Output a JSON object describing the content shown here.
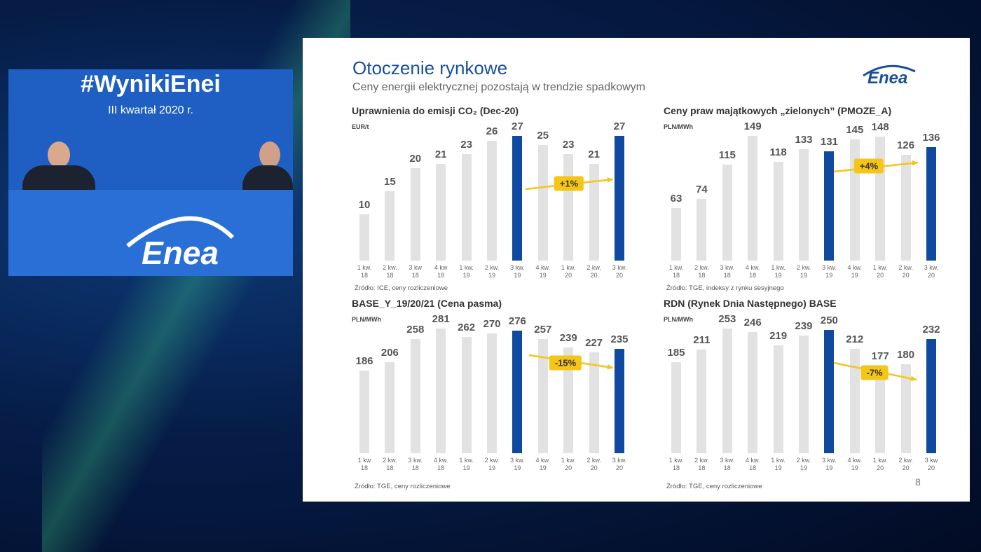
{
  "stream": {
    "hashtag": "#WynikiEnei",
    "period": "III kwartał 2020 r.",
    "logo": "Enea"
  },
  "slide": {
    "title": "Otoczenie rynkowe",
    "subtitle": "Ceny energii elektrycznej pozostają w trendzie spadkowym",
    "logo": "Enea",
    "page": "8"
  },
  "chart_data": [
    {
      "type": "bar",
      "title": "Uprawnienia do emisji CO₂ (Dec-20)",
      "unit": "EUR/t",
      "source": "Źródło: ICE, ceny rozliczeniowe",
      "categories": [
        "1 kw.\n18",
        "2 kw.\n18",
        "3 kw\n18",
        "4 kw\n18",
        "1 kw.\n19",
        "2 kw.\n19",
        "3 kw.\n19",
        "4 kw.\n19",
        "1 kw.\n20",
        "2 kw.\n20",
        "3 kw.\n20"
      ],
      "values": [
        10,
        15,
        20,
        21,
        23,
        26,
        27,
        25,
        23,
        21,
        27
      ],
      "color": "#e2e2e2",
      "highlight_color": "#0f4aa0",
      "highlight": [
        6,
        10
      ],
      "annotation": "+1%"
    },
    {
      "type": "bar",
      "title": "Ceny praw majątkowych „zielonych” (PMOZE_A)",
      "unit": "PLN/MWh",
      "source": "Źródło: TGE, indeksy z rynku sesyjnego",
      "categories": [
        "1 kw.\n18",
        "2 kw.\n18",
        "3 kw.\n18",
        "4 kw.\n18",
        "1 kw.\n19",
        "2 kw.\n19",
        "3 kw.\n19",
        "4 kw.\n19",
        "1 kw.\n20",
        "2 kw.\n20",
        "3 kw.\n20"
      ],
      "values": [
        63,
        74,
        115,
        149,
        118,
        133,
        131,
        145,
        148,
        126,
        136
      ],
      "color": "#e2e2e2",
      "highlight_color": "#0f4aa0",
      "highlight": [
        6,
        10
      ],
      "annotation": "+4%"
    },
    {
      "type": "bar",
      "title": "BASE_Y_19/20/21 (Cena pasma)",
      "unit": "PLN/MWh",
      "source": "Źródło: TGE, ceny rozliczeniowe",
      "categories": [
        "1 kw\n18",
        "2 kw.\n18",
        "3 kw.\n18",
        "4 kw.\n18",
        "1 kw.\n19",
        "2 kw.\n19",
        "3 kw.\n19",
        "4 kw.\n19",
        "1 kw.\n20",
        "2 kw.\n20",
        "3 kw.\n20"
      ],
      "values": [
        186,
        206,
        258,
        281,
        262,
        270,
        276,
        257,
        239,
        227,
        235
      ],
      "color": "#e2e2e2",
      "highlight_color": "#0f4aa0",
      "highlight": [
        6,
        10
      ],
      "annotation": "-15%"
    },
    {
      "type": "bar",
      "title": "RDN (Rynek Dnia Następnego) BASE",
      "unit": "PLN/MWh",
      "source": "Źródło: TGE, ceny rozliczeniowe",
      "categories": [
        "1 kw.\n18",
        "2 kw.\n18",
        "3 kw.\n18",
        "4 kw.\n18",
        "1 kw.\n19",
        "2 kw.\n19",
        "3 kw.\n19",
        "4 kw.\n19",
        "1 kw.\n20",
        "2 kw.\n20",
        "3 kw\n20"
      ],
      "values": [
        185,
        211,
        253,
        246,
        219,
        239,
        250,
        212,
        177,
        180,
        232
      ],
      "color": "#e2e2e2",
      "highlight_color": "#0f4aa0",
      "highlight": [
        6,
        10
      ],
      "annotation": "-7%"
    }
  ]
}
